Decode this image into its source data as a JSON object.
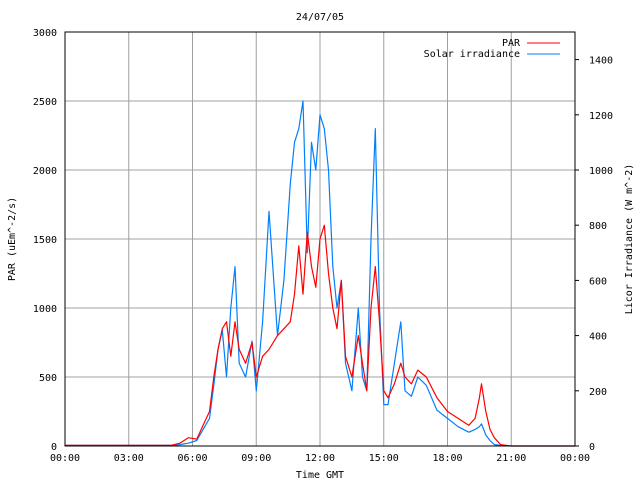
{
  "chart_data": {
    "type": "line",
    "title": "24/07/05",
    "xlabel": "Time GMT",
    "ylabel_left": "PAR (uEm^-2/s)",
    "ylabel_right": "Licor Irradiance (W m^-2)",
    "x_ticks": [
      "00:00",
      "03:00",
      "06:00",
      "09:00",
      "12:00",
      "15:00",
      "18:00",
      "21:00",
      "00:00"
    ],
    "y_left_ticks": [
      "0",
      "500",
      "1000",
      "1500",
      "2000",
      "2500",
      "3000"
    ],
    "y_right_ticks": [
      "0",
      "200",
      "400",
      "600",
      "800",
      "1000",
      "1200",
      "1400"
    ],
    "xlim_hours": [
      0,
      24
    ],
    "ylim_left": [
      0,
      3000
    ],
    "ylim_right": [
      0,
      1500
    ],
    "grid": true,
    "legend_position": "top-right",
    "series": [
      {
        "name": "PAR",
        "axis": "left",
        "color": "#ff0000",
        "x_hours": [
          0,
          5.0,
          5.4,
          5.8,
          6.2,
          6.5,
          6.8,
          7.0,
          7.2,
          7.4,
          7.6,
          7.8,
          8.0,
          8.2,
          8.5,
          8.8,
          9.0,
          9.3,
          9.6,
          10.0,
          10.3,
          10.6,
          10.8,
          11.0,
          11.2,
          11.4,
          11.6,
          11.8,
          12.0,
          12.2,
          12.4,
          12.6,
          12.8,
          13.0,
          13.2,
          13.5,
          13.8,
          14.0,
          14.2,
          14.4,
          14.6,
          14.8,
          15.0,
          15.2,
          15.5,
          15.8,
          16.0,
          16.3,
          16.6,
          17.0,
          17.5,
          18.0,
          18.5,
          19.0,
          19.3,
          19.5,
          19.6,
          19.8,
          20.0,
          20.2,
          20.5,
          21.0,
          24
        ],
        "values": [
          5,
          5,
          20,
          60,
          50,
          150,
          250,
          500,
          700,
          850,
          900,
          650,
          900,
          700,
          600,
          750,
          500,
          650,
          700,
          800,
          850,
          900,
          1100,
          1450,
          1100,
          1550,
          1300,
          1150,
          1500,
          1600,
          1250,
          1000,
          850,
          1200,
          650,
          500,
          800,
          600,
          400,
          1000,
          1300,
          900,
          400,
          350,
          450,
          600,
          500,
          450,
          550,
          500,
          350,
          250,
          200,
          150,
          200,
          350,
          450,
          250,
          120,
          60,
          10,
          0,
          0
        ]
      },
      {
        "name": "Solar irradiance",
        "axis": "right",
        "color": "#0080ff",
        "x_hours": [
          0,
          5.0,
          5.4,
          5.8,
          6.2,
          6.5,
          6.8,
          7.0,
          7.2,
          7.4,
          7.6,
          7.8,
          8.0,
          8.2,
          8.5,
          8.8,
          9.0,
          9.3,
          9.6,
          10.0,
          10.3,
          10.6,
          10.8,
          11.0,
          11.2,
          11.4,
          11.6,
          11.8,
          12.0,
          12.2,
          12.4,
          12.6,
          12.8,
          13.0,
          13.2,
          13.5,
          13.8,
          14.0,
          14.2,
          14.4,
          14.6,
          14.8,
          15.0,
          15.2,
          15.5,
          15.8,
          16.0,
          16.3,
          16.6,
          17.0,
          17.5,
          18.0,
          18.5,
          19.0,
          19.3,
          19.5,
          19.6,
          19.8,
          20.0,
          20.2,
          20.5,
          21.0,
          24
        ],
        "values": [
          2,
          2,
          5,
          10,
          20,
          60,
          100,
          220,
          350,
          420,
          250,
          500,
          650,
          300,
          250,
          380,
          200,
          450,
          850,
          400,
          600,
          950,
          1100,
          1150,
          1250,
          700,
          1100,
          1000,
          1200,
          1150,
          1000,
          650,
          500,
          600,
          300,
          200,
          500,
          250,
          200,
          750,
          1150,
          500,
          150,
          150,
          300,
          450,
          200,
          180,
          250,
          220,
          130,
          100,
          70,
          50,
          60,
          70,
          80,
          40,
          20,
          5,
          2,
          0,
          0
        ]
      }
    ]
  }
}
